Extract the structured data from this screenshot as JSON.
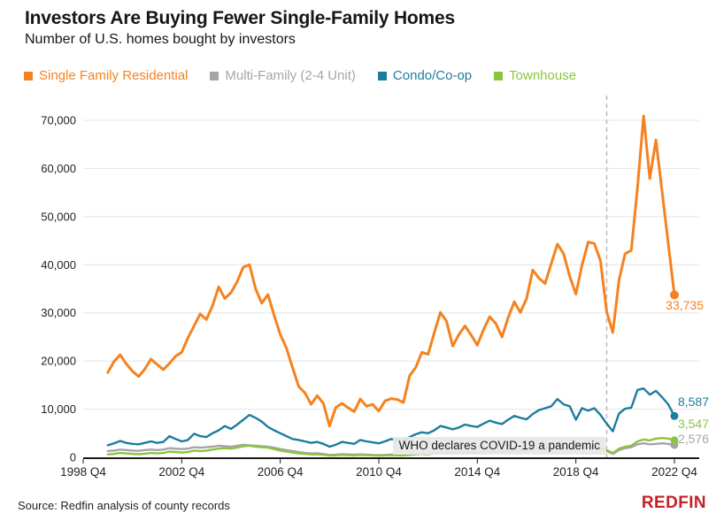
{
  "header": {
    "title": "Investors Are Buying Fewer Single-Family Homes",
    "subtitle": "Number of U.S. homes bought by investors"
  },
  "legend": {
    "items": [
      {
        "label": "Single Family Residential",
        "color": "#F5821F"
      },
      {
        "label": "Multi-Family (2-4 Unit)",
        "color": "#A5A5A5"
      },
      {
        "label": "Condo/Co-op",
        "color": "#1D7D9E"
      },
      {
        "label": "Townhouse",
        "color": "#8BC53F"
      }
    ]
  },
  "chart_data": {
    "type": "line",
    "title": "Investors Are Buying Fewer Single-Family Homes",
    "subtitle": "Number of U.S. homes bought by investors",
    "xlabel": "",
    "ylabel": "",
    "ylim": [
      0,
      70000
    ],
    "grid": "horizontal",
    "legend_position": "top-left",
    "x_unit": "quarters since 1998 Q4",
    "start_quarter_offset": 4,
    "start_label": "1999 Q4",
    "end_label_x": "2022 Q4",
    "x_ticks": [
      {
        "label": "1998 Q4",
        "quarter_offset": 0
      },
      {
        "label": "2002 Q4",
        "quarter_offset": 16
      },
      {
        "label": "2006 Q4",
        "quarter_offset": 32
      },
      {
        "label": "2010 Q4",
        "quarter_offset": 48
      },
      {
        "label": "2014 Q4",
        "quarter_offset": 64
      },
      {
        "label": "2018 Q4",
        "quarter_offset": 80
      },
      {
        "label": "2022 Q4",
        "quarter_offset": 96
      }
    ],
    "y_ticks": [
      {
        "value": 0,
        "label": "0"
      },
      {
        "value": 10000,
        "label": "10,000"
      },
      {
        "value": 20000,
        "label": "20,000"
      },
      {
        "value": 30000,
        "label": "30,000"
      },
      {
        "value": 40000,
        "label": "40,000"
      },
      {
        "value": 50000,
        "label": "50,000"
      },
      {
        "value": 60000,
        "label": "60,000"
      },
      {
        "value": 70000,
        "label": "70,000"
      }
    ],
    "annotation": {
      "text": "WHO declares COVID-19 a pandemic",
      "quarter_offset": 85,
      "event_quarter": "2020 Q1",
      "line_style": "dashed-vertical"
    },
    "series": [
      {
        "name": "Multi-Family (2-4 Unit)",
        "color": "#A5A5A5",
        "end_label": "2,576",
        "end_value": 2576,
        "values": [
          1300,
          1400,
          1600,
          1500,
          1400,
          1350,
          1500,
          1600,
          1500,
          1600,
          1900,
          1800,
          1700,
          1800,
          2100,
          2000,
          2100,
          2200,
          2400,
          2300,
          2200,
          2400,
          2600,
          2500,
          2400,
          2300,
          2200,
          2000,
          1700,
          1500,
          1300,
          1100,
          900,
          800,
          850,
          700,
          500,
          550,
          650,
          600,
          550,
          600,
          550,
          500,
          450,
          500,
          550,
          500,
          480,
          600,
          700,
          800,
          750,
          900,
          1050,
          1000,
          950,
          1050,
          1150,
          1100,
          1050,
          1200,
          1350,
          1300,
          1250,
          1400,
          1550,
          1500,
          1450,
          1700,
          1900,
          2000,
          1900,
          2100,
          2000,
          1900,
          1600,
          1900,
          1800,
          1900,
          1700,
          1300,
          700,
          1500,
          1900,
          2100,
          2700,
          2900,
          2700,
          2800,
          2900,
          2800,
          2576
        ]
      },
      {
        "name": "Townhouse",
        "color": "#8BC53F",
        "end_label": "3,547",
        "end_value": 3547,
        "values": [
          600,
          700,
          900,
          800,
          700,
          650,
          750,
          900,
          800,
          900,
          1200,
          1100,
          1000,
          1100,
          1400,
          1300,
          1400,
          1600,
          1800,
          1900,
          1800,
          2000,
          2300,
          2400,
          2200,
          2100,
          2000,
          1700,
          1400,
          1200,
          1000,
          800,
          700,
          600,
          650,
          550,
          350,
          400,
          500,
          450,
          400,
          500,
          450,
          400,
          350,
          400,
          450,
          400,
          380,
          500,
          600,
          700,
          650,
          800,
          950,
          900,
          850,
          950,
          1050,
          1000,
          950,
          1100,
          1250,
          1200,
          1100,
          1300,
          1450,
          1400,
          1350,
          1600,
          1800,
          2000,
          1900,
          2200,
          2100,
          2000,
          1700,
          2100,
          2000,
          2100,
          1900,
          1500,
          900,
          1800,
          2200,
          2400,
          3300,
          3700,
          3500,
          3900,
          4000,
          3900,
          3547
        ]
      },
      {
        "name": "Condo/Co-op",
        "color": "#1D7D9E",
        "end_label": "8,587",
        "end_value": 8587,
        "values": [
          2500,
          2900,
          3400,
          3000,
          2800,
          2700,
          3000,
          3300,
          3000,
          3200,
          4400,
          3800,
          3300,
          3600,
          4900,
          4400,
          4200,
          5000,
          5600,
          6500,
          5900,
          6800,
          7800,
          8800,
          8200,
          7400,
          6300,
          5600,
          5000,
          4400,
          3800,
          3600,
          3300,
          3000,
          3200,
          2800,
          2200,
          2600,
          3200,
          3000,
          2800,
          3600,
          3300,
          3100,
          2900,
          3300,
          3800,
          3600,
          3400,
          4200,
          4800,
          5200,
          5000,
          5600,
          6500,
          6200,
          5800,
          6200,
          6800,
          6500,
          6300,
          7000,
          7600,
          7200,
          6900,
          7800,
          8600,
          8200,
          7900,
          9000,
          9800,
          10200,
          10600,
          12100,
          11000,
          10600,
          7800,
          10200,
          9700,
          10200,
          8800,
          7000,
          5400,
          9100,
          10100,
          10300,
          14000,
          14300,
          13000,
          13800,
          12500,
          11000,
          8587
        ]
      },
      {
        "name": "Single Family Residential",
        "color": "#F5821F",
        "end_label": "33,735",
        "end_value": 33735,
        "values": [
          17600,
          19900,
          21300,
          19400,
          17900,
          16800,
          18300,
          20400,
          19300,
          18200,
          19500,
          21000,
          21800,
          24800,
          27300,
          29800,
          28600,
          31500,
          35400,
          33000,
          34200,
          36500,
          39500,
          40000,
          35000,
          32000,
          33800,
          29500,
          25500,
          22700,
          18600,
          14700,
          13400,
          11000,
          12800,
          11200,
          6500,
          10300,
          11200,
          10300,
          9500,
          12100,
          10600,
          11000,
          9600,
          11700,
          12200,
          12000,
          11400,
          16900,
          18700,
          21800,
          21400,
          25800,
          30100,
          28300,
          23100,
          25500,
          27300,
          25400,
          23300,
          26500,
          29200,
          27800,
          25000,
          29000,
          32300,
          30100,
          33000,
          38900,
          37200,
          36100,
          40200,
          44300,
          42300,
          37600,
          33900,
          39900,
          44700,
          44400,
          40800,
          30200,
          25900,
          36800,
          42300,
          43000,
          56000,
          70900,
          57900,
          65900,
          55200,
          44500,
          33735
        ]
      }
    ],
    "colors": {
      "gridline": "#E4E4E4",
      "axis": "#1A1A1A",
      "dashed_line": "#BBBBBB",
      "tick_text": "#222222"
    }
  },
  "footer": {
    "source": "Source: Redfin analysis of county records",
    "logo": "REDFIN",
    "logo_color": "#C32127"
  }
}
